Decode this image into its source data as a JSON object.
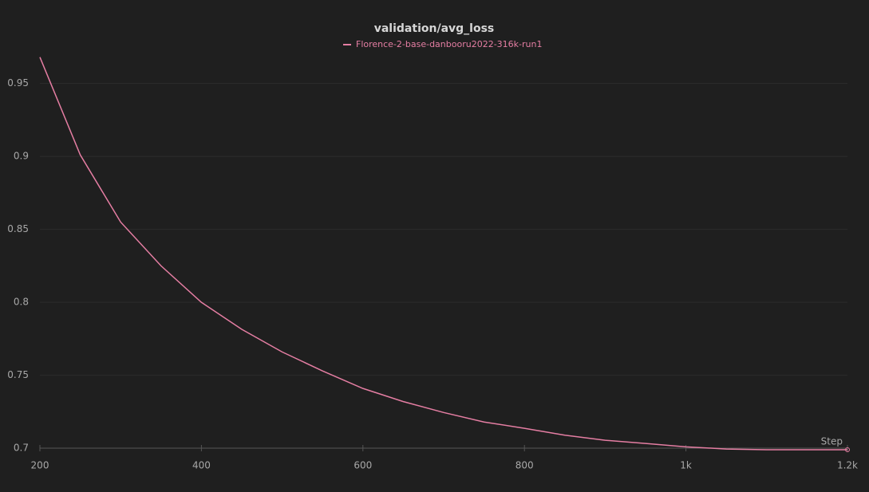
{
  "chart_data": {
    "type": "line",
    "title": "validation/avg_loss",
    "x_label": "Step",
    "x": [
      200,
      250,
      300,
      350,
      400,
      450,
      500,
      550,
      600,
      650,
      700,
      750,
      800,
      850,
      900,
      950,
      1000,
      1050,
      1100,
      1150,
      1200
    ],
    "series": [
      {
        "name": "Florence-2-base-danbooru2022-316k-run1",
        "color": "#e57ea3",
        "values": [
          0.968,
          0.901,
          0.855,
          0.825,
          0.8,
          0.7815,
          0.766,
          0.753,
          0.741,
          0.732,
          0.7245,
          0.718,
          0.7137,
          0.709,
          0.7055,
          0.7033,
          0.701,
          0.6995,
          0.699,
          0.699,
          0.699
        ]
      }
    ],
    "xlim": [
      200,
      1200
    ],
    "xticks": [
      200,
      400,
      600,
      800,
      {
        "value": 1000,
        "label": "1k"
      },
      {
        "value": 1200,
        "label": "1.2k"
      }
    ],
    "ylim": [
      0.699,
      0.97
    ],
    "yticks": [
      0.7,
      0.75,
      0.8,
      0.85,
      0.9,
      0.95
    ],
    "grid": true
  }
}
